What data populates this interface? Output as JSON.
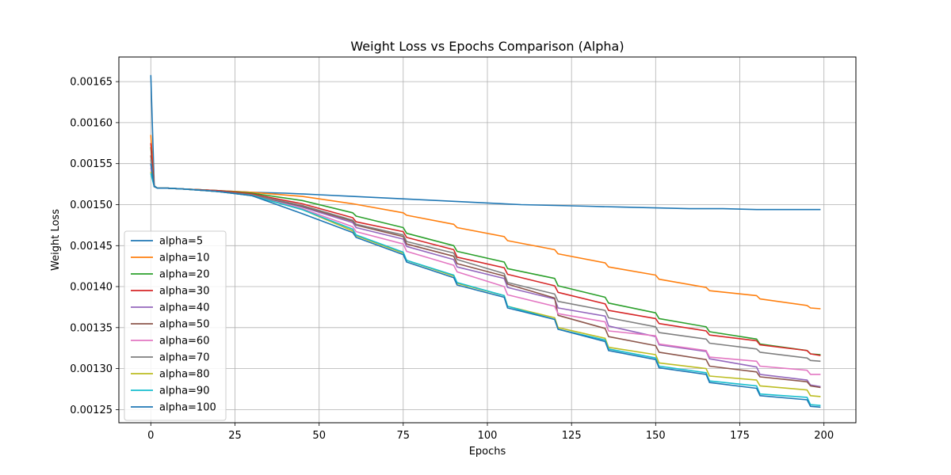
{
  "chart_data": {
    "type": "line",
    "title": "Weight Loss vs Epochs Comparison (Alpha)",
    "xlabel": "Epochs",
    "ylabel": "Weight Loss",
    "xlim": [
      -9.5,
      209.5
    ],
    "ylim": [
      0.001234,
      0.00168
    ],
    "xticks": [
      0,
      25,
      50,
      75,
      100,
      125,
      150,
      175,
      200
    ],
    "xtick_labels": [
      "0",
      "25",
      "50",
      "75",
      "100",
      "125",
      "150",
      "175",
      "200"
    ],
    "yticks": [
      0.00125,
      0.0013,
      0.00135,
      0.0014,
      0.00145,
      0.0015,
      0.00155,
      0.0016,
      0.00165
    ],
    "ytick_labels": [
      "0.00125",
      "0.00130",
      "0.00135",
      "0.00140",
      "0.00145",
      "0.00150",
      "0.00155",
      "0.00160",
      "0.00165"
    ],
    "grid": true,
    "legend_position": "lower-left",
    "series": [
      {
        "name": "alpha=5",
        "color": "#1f77b4",
        "x": [
          0,
          1,
          2,
          5,
          10,
          20,
          30,
          40,
          50,
          60,
          75,
          90,
          100,
          110,
          120,
          130,
          140,
          150,
          160,
          170,
          180,
          190,
          199
        ],
        "values": [
          0.001658,
          0.001523,
          0.00152,
          0.00152,
          0.001519,
          0.001517,
          0.001515,
          0.001514,
          0.001512,
          0.00151,
          0.001507,
          0.001504,
          0.001502,
          0.0015,
          0.001499,
          0.001498,
          0.001497,
          0.001496,
          0.001495,
          0.001495,
          0.001494,
          0.001494,
          0.001494
        ]
      },
      {
        "name": "alpha=10",
        "color": "#ff7f0e",
        "x": [
          0,
          1,
          2,
          5,
          10,
          20,
          30,
          45,
          60,
          75,
          76,
          90,
          91,
          105,
          106,
          120,
          121,
          135,
          136,
          150,
          151,
          165,
          166,
          180,
          181,
          195,
          196,
          199
        ],
        "values": [
          0.001585,
          0.001522,
          0.00152,
          0.00152,
          0.001519,
          0.001517,
          0.001515,
          0.00151,
          0.001501,
          0.00149,
          0.001487,
          0.001476,
          0.001472,
          0.001461,
          0.001456,
          0.001445,
          0.00144,
          0.001429,
          0.001424,
          0.001414,
          0.001409,
          0.001399,
          0.001395,
          0.001389,
          0.001385,
          0.001377,
          0.001374,
          0.001373
        ]
      },
      {
        "name": "alpha=20",
        "color": "#2ca02c",
        "x": [
          0,
          1,
          2,
          5,
          10,
          20,
          30,
          45,
          60,
          61,
          75,
          76,
          90,
          91,
          105,
          106,
          120,
          121,
          135,
          136,
          150,
          151,
          165,
          166,
          180,
          181,
          195,
          196,
          199
        ],
        "values": [
          0.00157,
          0.001522,
          0.00152,
          0.00152,
          0.001519,
          0.001517,
          0.001514,
          0.001505,
          0.00149,
          0.001486,
          0.001472,
          0.001465,
          0.00145,
          0.001443,
          0.00143,
          0.001422,
          0.00141,
          0.001401,
          0.001387,
          0.00138,
          0.001368,
          0.001361,
          0.001351,
          0.001345,
          0.001336,
          0.00133,
          0.001322,
          0.001318,
          0.001317
        ]
      },
      {
        "name": "alpha=30",
        "color": "#d62728",
        "x": [
          0,
          1,
          2,
          5,
          10,
          20,
          30,
          45,
          60,
          61,
          75,
          76,
          90,
          91,
          105,
          106,
          120,
          121,
          135,
          136,
          150,
          151,
          165,
          166,
          180,
          181,
          195,
          196,
          199
        ],
        "values": [
          0.001575,
          0.001522,
          0.00152,
          0.00152,
          0.001519,
          0.001517,
          0.001513,
          0.001501,
          0.001484,
          0.001479,
          0.001467,
          0.00146,
          0.001445,
          0.001436,
          0.001423,
          0.001415,
          0.001401,
          0.001393,
          0.001379,
          0.001371,
          0.001361,
          0.001355,
          0.001346,
          0.001341,
          0.001334,
          0.001329,
          0.001322,
          0.001318,
          0.001316
        ]
      },
      {
        "name": "alpha=40",
        "color": "#9467bd",
        "x": [
          0,
          1,
          2,
          5,
          10,
          20,
          30,
          45,
          60,
          61,
          75,
          76,
          90,
          91,
          105,
          106,
          120,
          121,
          135,
          136,
          150,
          151,
          165,
          166,
          180,
          181,
          195,
          196,
          199
        ],
        "values": [
          0.00155,
          0.001522,
          0.00152,
          0.00152,
          0.001519,
          0.001516,
          0.001512,
          0.001497,
          0.001478,
          0.001472,
          0.001458,
          0.001449,
          0.001433,
          0.001424,
          0.00141,
          0.001399,
          0.001385,
          0.001374,
          0.001364,
          0.001352,
          0.001339,
          0.001329,
          0.001321,
          0.001312,
          0.001302,
          0.001293,
          0.001286,
          0.00128,
          0.001278
        ]
      },
      {
        "name": "alpha=50",
        "color": "#8c564b",
        "x": [
          0,
          1,
          2,
          5,
          10,
          20,
          30,
          45,
          60,
          61,
          75,
          76,
          90,
          91,
          105,
          106,
          120,
          121,
          135,
          136,
          150,
          151,
          165,
          166,
          180,
          181,
          195,
          196,
          199
        ],
        "values": [
          0.00156,
          0.001522,
          0.00152,
          0.00152,
          0.001519,
          0.001516,
          0.001512,
          0.001498,
          0.00148,
          0.001475,
          0.001461,
          0.001452,
          0.001437,
          0.001428,
          0.001413,
          0.001403,
          0.001386,
          0.001365,
          0.001349,
          0.001339,
          0.001328,
          0.00132,
          0.001311,
          0.001303,
          0.001296,
          0.00129,
          0.001284,
          0.001279,
          0.001277
        ]
      },
      {
        "name": "alpha=60",
        "color": "#e377c2",
        "x": [
          0,
          1,
          2,
          5,
          10,
          20,
          30,
          45,
          60,
          61,
          75,
          76,
          90,
          91,
          105,
          106,
          120,
          121,
          135,
          136,
          150,
          151,
          165,
          166,
          180,
          181,
          195,
          196,
          199
        ],
        "values": [
          0.001545,
          0.001522,
          0.00152,
          0.00152,
          0.001519,
          0.001516,
          0.001511,
          0.001495,
          0.001473,
          0.001467,
          0.001452,
          0.001443,
          0.001426,
          0.001418,
          0.0014,
          0.00139,
          0.001376,
          0.001367,
          0.001357,
          0.001346,
          0.00134,
          0.00133,
          0.001322,
          0.001314,
          0.001309,
          0.001303,
          0.001298,
          0.001293,
          0.001293
        ]
      },
      {
        "name": "alpha=70",
        "color": "#7f7f7f",
        "x": [
          0,
          1,
          2,
          5,
          10,
          20,
          30,
          45,
          60,
          61,
          75,
          76,
          90,
          91,
          105,
          106,
          120,
          121,
          135,
          136,
          150,
          151,
          165,
          166,
          180,
          181,
          195,
          196,
          199
        ],
        "values": [
          0.001555,
          0.001522,
          0.00152,
          0.00152,
          0.001519,
          0.001516,
          0.001512,
          0.001499,
          0.001481,
          0.001476,
          0.001463,
          0.001455,
          0.001441,
          0.001433,
          0.001416,
          0.001405,
          0.001391,
          0.001382,
          0.001371,
          0.001362,
          0.001351,
          0.001344,
          0.001336,
          0.001331,
          0.001324,
          0.00132,
          0.001313,
          0.00131,
          0.001309
        ]
      },
      {
        "name": "alpha=80",
        "color": "#bcbd22",
        "x": [
          0,
          1,
          2,
          5,
          10,
          20,
          30,
          45,
          60,
          61,
          75,
          76,
          90,
          91,
          105,
          106,
          120,
          121,
          135,
          136,
          150,
          151,
          165,
          166,
          180,
          181,
          195,
          196,
          199
        ],
        "values": [
          0.00154,
          0.001522,
          0.00152,
          0.00152,
          0.001519,
          0.001516,
          0.001511,
          0.001494,
          0.001468,
          0.001462,
          0.001441,
          0.001432,
          0.001413,
          0.001404,
          0.001389,
          0.001376,
          0.001362,
          0.00135,
          0.001337,
          0.001326,
          0.001317,
          0.001307,
          0.0013,
          0.001291,
          0.001286,
          0.001279,
          0.001274,
          0.001267,
          0.001266
        ]
      },
      {
        "name": "alpha=90",
        "color": "#17becf",
        "x": [
          0,
          1,
          2,
          5,
          10,
          20,
          30,
          45,
          60,
          61,
          75,
          76,
          90,
          91,
          105,
          106,
          120,
          121,
          135,
          136,
          150,
          151,
          165,
          166,
          180,
          181,
          195,
          196,
          199
        ],
        "values": [
          0.001538,
          0.001522,
          0.00152,
          0.00152,
          0.001519,
          0.001516,
          0.001511,
          0.001494,
          0.00147,
          0.001463,
          0.001442,
          0.001432,
          0.001414,
          0.001405,
          0.001389,
          0.001376,
          0.00136,
          0.001348,
          0.001335,
          0.001324,
          0.001313,
          0.001303,
          0.001295,
          0.001285,
          0.001279,
          0.001269,
          0.001265,
          0.001256,
          0.001255
        ]
      },
      {
        "name": "alpha=100",
        "color": "#1f77b4",
        "x": [
          0,
          1,
          2,
          5,
          10,
          20,
          30,
          45,
          60,
          61,
          75,
          76,
          90,
          91,
          105,
          106,
          120,
          121,
          135,
          136,
          150,
          151,
          165,
          166,
          180,
          181,
          195,
          196,
          199
        ],
        "values": [
          0.00155,
          0.001522,
          0.00152,
          0.00152,
          0.001519,
          0.001516,
          0.001511,
          0.001489,
          0.001466,
          0.00146,
          0.001439,
          0.00143,
          0.001411,
          0.001402,
          0.001387,
          0.001374,
          0.00136,
          0.001348,
          0.001333,
          0.001322,
          0.001311,
          0.001301,
          0.001293,
          0.001283,
          0.001276,
          0.001267,
          0.001262,
          0.001254,
          0.001253
        ]
      }
    ]
  }
}
